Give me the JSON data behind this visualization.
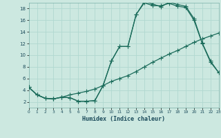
{
  "xlabel": "Humidex (Indice chaleur)",
  "bg_color": "#cce8e0",
  "line_color": "#1a6b5a",
  "grid_color": "#b0d8d0",
  "xlim": [
    0,
    23
  ],
  "ylim": [
    1,
    19
  ],
  "xticks": [
    0,
    1,
    2,
    3,
    4,
    5,
    6,
    7,
    8,
    9,
    10,
    11,
    12,
    13,
    14,
    15,
    16,
    17,
    18,
    19,
    20,
    21,
    22,
    23
  ],
  "yticks": [
    2,
    4,
    6,
    8,
    10,
    12,
    14,
    16,
    18
  ],
  "curve1_x": [
    0,
    1,
    2,
    3,
    4,
    5,
    6,
    7,
    8,
    9,
    10,
    11,
    12,
    13,
    14,
    15,
    16,
    17,
    18,
    19,
    20,
    21,
    22,
    23
  ],
  "curve1_y": [
    4.5,
    3.2,
    2.6,
    2.5,
    2.8,
    2.7,
    2.1,
    2.1,
    2.2,
    4.8,
    9.0,
    11.5,
    11.5,
    17.0,
    19.2,
    18.8,
    18.3,
    19.1,
    18.7,
    18.4,
    16.3,
    12.1,
    9.0,
    7.0
  ],
  "curve2_x": [
    0,
    1,
    2,
    3,
    4,
    5,
    6,
    7,
    8,
    9,
    10,
    11,
    12,
    13,
    14,
    15,
    16,
    17,
    18,
    19,
    20,
    21,
    22,
    23
  ],
  "curve2_y": [
    4.5,
    3.2,
    2.6,
    2.5,
    2.8,
    2.7,
    2.1,
    2.1,
    2.2,
    4.8,
    9.0,
    11.5,
    11.5,
    17.0,
    19.0,
    18.5,
    18.5,
    18.9,
    18.4,
    18.2,
    16.0,
    12.0,
    8.8,
    7.0
  ],
  "curve3_x": [
    0,
    1,
    2,
    3,
    4,
    5,
    6,
    7,
    8,
    9,
    10,
    11,
    12,
    13,
    14,
    15,
    16,
    17,
    18,
    19,
    20,
    21,
    22,
    23
  ],
  "curve3_y": [
    4.5,
    3.2,
    2.6,
    2.5,
    2.8,
    3.2,
    3.5,
    3.8,
    4.2,
    4.8,
    5.5,
    6.0,
    6.5,
    7.2,
    8.0,
    8.8,
    9.5,
    10.2,
    10.8,
    11.5,
    12.2,
    12.8,
    13.3,
    13.8
  ],
  "markersize": 2.0,
  "linewidth": 0.9
}
